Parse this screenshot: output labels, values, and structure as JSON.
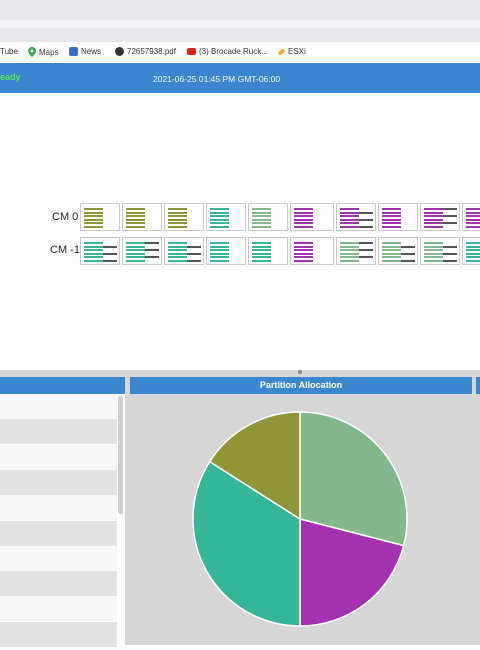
{
  "bookmarks": [
    {
      "label": "Tube",
      "icon": "youtube-icon"
    },
    {
      "label": "Maps",
      "icon": "maps-pin-icon"
    },
    {
      "label": "News",
      "icon": "news-icon"
    },
    {
      "label": "72657938.pdf",
      "icon": "globe-icon"
    },
    {
      "label": "(3) Brocade Ruck...",
      "icon": "youtube-icon"
    },
    {
      "label": "ESXi",
      "icon": "pencil-icon"
    }
  ],
  "appbar": {
    "status": "eady",
    "timestamp": "2021-06-25 01:45 PM GMT-06:00"
  },
  "cm_rows": [
    {
      "label": "CM 0"
    },
    {
      "label": "CM -1"
    }
  ],
  "panels": {
    "partition_allocation_title": "Partition Allocation"
  },
  "colors": {
    "olive": "#8f9637",
    "teal": "#36b597",
    "sage": "#84b88c",
    "magenta": "#a232b0",
    "dark": "#555555",
    "appbar": "#3a87cf",
    "ready": "#58e658"
  },
  "chart_data": {
    "type": "pie",
    "title": "Partition Allocation",
    "slices": [
      {
        "value": 29,
        "color": "#84b88c"
      },
      {
        "value": 21,
        "color": "#a232b0"
      },
      {
        "value": 34,
        "color": "#36b597"
      },
      {
        "value": 16,
        "color": "#8f9637"
      }
    ]
  }
}
